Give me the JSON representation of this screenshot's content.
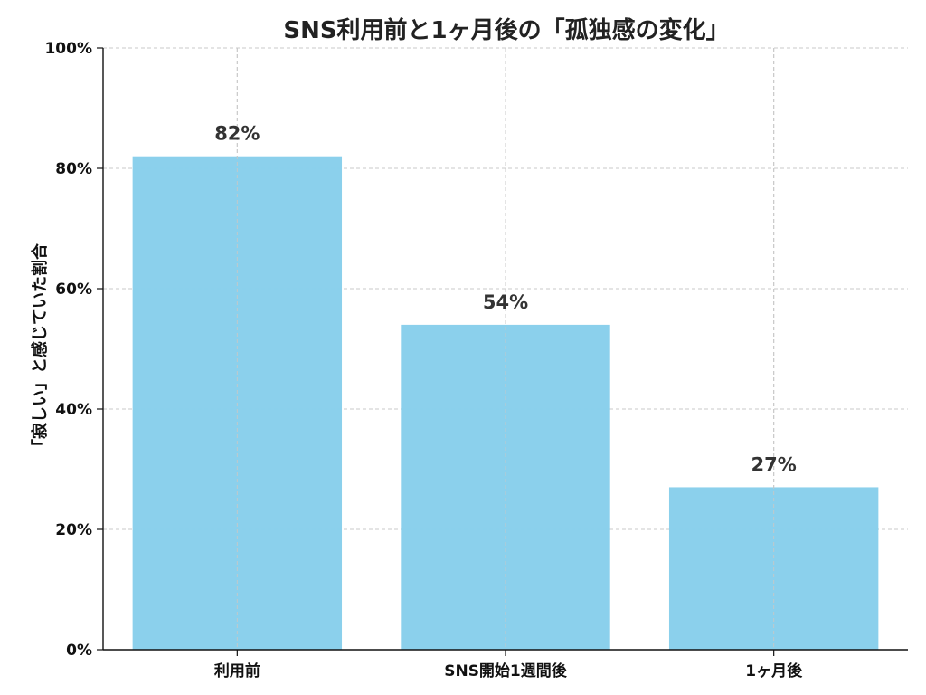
{
  "chart_data": {
    "type": "bar",
    "title": "SNS利用前と1ヶ月後の「孤独感の変化」",
    "xlabel": "",
    "ylabel": "「寂しい」と感じていた割合",
    "categories": [
      "利用前",
      "SNS開始1週間後",
      "1ヶ月後"
    ],
    "values": [
      82,
      54,
      27
    ],
    "value_labels": [
      "82%",
      "54%",
      "27%"
    ],
    "ylim": [
      0,
      100
    ],
    "yticks": [
      0,
      20,
      40,
      60,
      80,
      100
    ],
    "ytick_labels": [
      "0%",
      "20%",
      "40%",
      "60%",
      "80%",
      "100%"
    ],
    "grid": true,
    "colors": {
      "bar": "#87ceeb",
      "axis": "#111111",
      "grid": "#c8c8c8"
    }
  }
}
